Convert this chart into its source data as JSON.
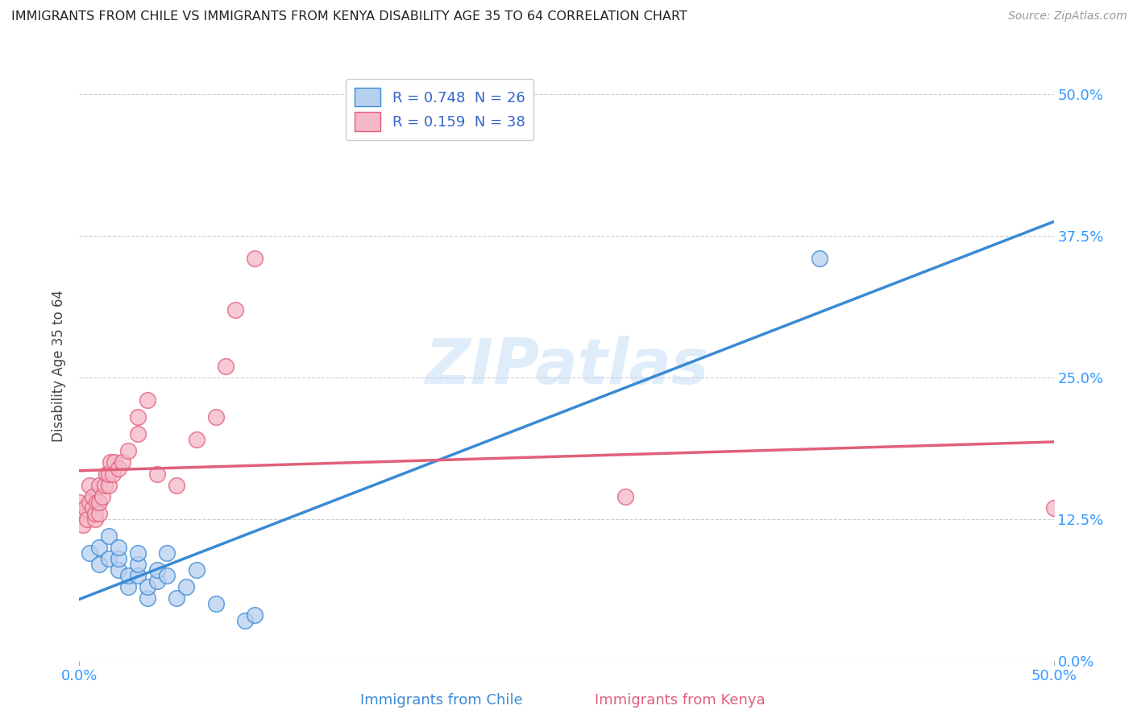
{
  "title": "IMMIGRANTS FROM CHILE VS IMMIGRANTS FROM KENYA DISABILITY AGE 35 TO 64 CORRELATION CHART",
  "source": "Source: ZipAtlas.com",
  "ylabel": "Disability Age 35 to 64",
  "watermark": "ZIPatlas",
  "chile_R": 0.748,
  "chile_N": 26,
  "kenya_R": 0.159,
  "kenya_N": 38,
  "chile_color": "#b8d0f0",
  "kenya_color": "#f5b8c8",
  "chile_line_color": "#3a8ad4",
  "kenya_line_color": "#e0607a",
  "legend_chile_label": "R = 0.748  N = 26",
  "legend_kenya_label": "R = 0.159  N = 38",
  "ytick_values": [
    0.0,
    0.125,
    0.25,
    0.375,
    0.5
  ],
  "xlim": [
    0.0,
    0.5
  ],
  "ylim": [
    0.0,
    0.52
  ],
  "chile_x": [
    0.005,
    0.01,
    0.01,
    0.015,
    0.015,
    0.02,
    0.02,
    0.02,
    0.025,
    0.025,
    0.03,
    0.03,
    0.03,
    0.035,
    0.035,
    0.04,
    0.04,
    0.045,
    0.045,
    0.05,
    0.055,
    0.06,
    0.07,
    0.085,
    0.09,
    0.38
  ],
  "chile_y": [
    0.095,
    0.085,
    0.1,
    0.09,
    0.11,
    0.08,
    0.09,
    0.1,
    0.065,
    0.075,
    0.075,
    0.085,
    0.095,
    0.055,
    0.065,
    0.07,
    0.08,
    0.075,
    0.095,
    0.055,
    0.065,
    0.08,
    0.05,
    0.035,
    0.04,
    0.355
  ],
  "kenya_x": [
    0.0,
    0.0,
    0.002,
    0.003,
    0.004,
    0.005,
    0.005,
    0.007,
    0.007,
    0.008,
    0.008,
    0.009,
    0.01,
    0.01,
    0.01,
    0.012,
    0.013,
    0.014,
    0.015,
    0.015,
    0.016,
    0.017,
    0.018,
    0.02,
    0.022,
    0.025,
    0.03,
    0.03,
    0.035,
    0.04,
    0.05,
    0.06,
    0.07,
    0.075,
    0.08,
    0.09,
    0.28,
    0.5
  ],
  "kenya_y": [
    0.13,
    0.14,
    0.12,
    0.135,
    0.125,
    0.14,
    0.155,
    0.135,
    0.145,
    0.125,
    0.13,
    0.14,
    0.13,
    0.14,
    0.155,
    0.145,
    0.155,
    0.165,
    0.155,
    0.165,
    0.175,
    0.165,
    0.175,
    0.17,
    0.175,
    0.185,
    0.2,
    0.215,
    0.23,
    0.165,
    0.155,
    0.195,
    0.215,
    0.26,
    0.31,
    0.355,
    0.145,
    0.135
  ],
  "background_color": "#ffffff",
  "grid_color": "#c8c8c8",
  "title_color": "#222222",
  "axis_label_color": "#444444",
  "tick_color": "#3399ff",
  "legend_label_color": "#3366cc"
}
